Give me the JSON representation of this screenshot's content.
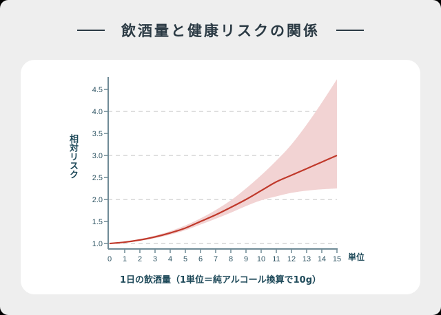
{
  "title": "飲酒量と健康リスクの関係",
  "colors": {
    "background": "#eeeeee",
    "card": "#ffffff",
    "line": "#c0392b",
    "band": "#f2d3d3",
    "axis": "#6f8a96",
    "grid": "#d6d6d6",
    "text": "#1f4a5a"
  },
  "chart_data": {
    "type": "line",
    "title": "飲酒量と健康リスクの関係",
    "xlabel": "1日の飲酒量（1単位＝純アルコール換算で10g）",
    "x_unit_label": "単位",
    "ylabel": "相対リスク",
    "xlim": [
      0,
      15
    ],
    "ylim": [
      1.0,
      4.75
    ],
    "x": [
      0,
      1,
      2,
      3,
      4,
      5,
      6,
      7,
      8,
      9,
      10,
      11,
      12,
      13,
      14,
      15
    ],
    "x_ticks": [
      "0",
      "1",
      "2",
      "3",
      "4",
      "5",
      "6",
      "7",
      "8",
      "9",
      "10",
      "11",
      "12",
      "13",
      "14",
      "15"
    ],
    "y_ticks": [
      "1.0",
      "1.5",
      "2.0",
      "2.5",
      "3.0",
      "3.5",
      "4.0",
      "4.5"
    ],
    "y_tick_values": [
      1.0,
      1.5,
      2.0,
      2.5,
      3.0,
      3.5,
      4.0,
      4.5
    ],
    "gridlines_y": [
      1.0,
      2.0,
      3.0,
      4.0
    ],
    "grid": "dashed horizontal at integer values",
    "legend": "none",
    "series": [
      {
        "name": "相対リスク",
        "values": [
          1.0,
          1.03,
          1.08,
          1.15,
          1.24,
          1.35,
          1.5,
          1.65,
          1.82,
          2.0,
          2.2,
          2.4,
          2.55,
          2.7,
          2.85,
          3.0
        ]
      }
    ],
    "confidence_band": {
      "upper": [
        1.0,
        1.04,
        1.1,
        1.18,
        1.28,
        1.41,
        1.57,
        1.76,
        1.98,
        2.25,
        2.55,
        2.88,
        3.25,
        3.7,
        4.2,
        4.73
      ],
      "lower": [
        1.0,
        1.02,
        1.06,
        1.12,
        1.2,
        1.3,
        1.43,
        1.56,
        1.7,
        1.85,
        1.98,
        2.07,
        2.15,
        2.2,
        2.23,
        2.25
      ]
    }
  }
}
